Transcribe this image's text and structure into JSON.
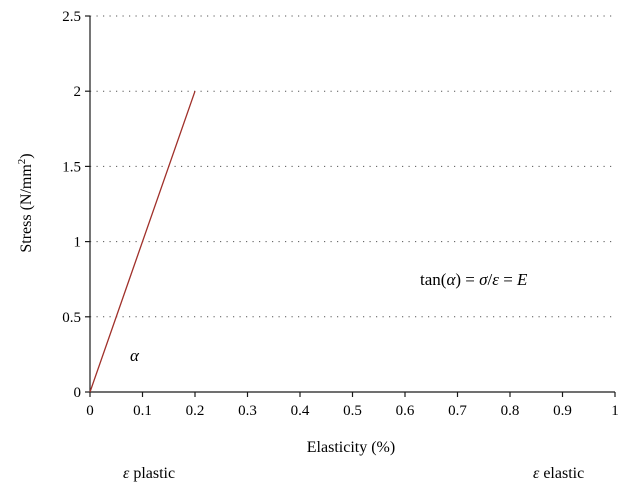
{
  "chart_data": {
    "type": "line",
    "title": "",
    "xlabel": "Elasticity (%)",
    "ylabel_main": "Stress (N/mm",
    "ylabel_sup": "2",
    "ylabel_close": ")",
    "xlim": [
      0,
      1
    ],
    "ylim": [
      0,
      2.5
    ],
    "x_ticks": [
      0,
      0.1,
      0.2,
      0.3,
      0.4,
      0.5,
      0.6,
      0.7,
      0.8,
      0.9,
      1
    ],
    "x_tick_labels": [
      "0",
      "0.1",
      "0.2",
      "0.3",
      "0.4",
      "0.5",
      "0.6",
      "0.7",
      "0.8",
      "0.9",
      "1"
    ],
    "y_ticks": [
      0,
      0.5,
      1,
      1.5,
      2,
      2.5
    ],
    "y_tick_labels": [
      "0",
      "0.5",
      "1",
      "1.5",
      "2",
      "2.5"
    ],
    "grid": "horizontal-dotted",
    "series": [
      {
        "color": "#a0302a",
        "x": [
          0,
          0.2
        ],
        "y": [
          0,
          2
        ]
      }
    ],
    "annotations": {
      "alpha": "α",
      "formula_prefix": "tan(",
      "formula_alpha": "α",
      "formula_mid": ") = ",
      "formula_sigma": "σ",
      "formula_slash": "/",
      "formula_eps": "ε",
      "formula_eq": " = ",
      "formula_E": "E"
    },
    "footer": {
      "left_symbol": "ε",
      "left_text": " plastic",
      "right_symbol": "ε",
      "right_text": " elastic"
    }
  }
}
